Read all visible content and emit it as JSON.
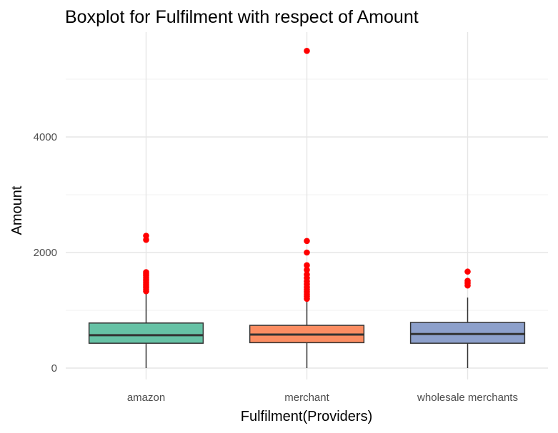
{
  "chart_data": {
    "type": "boxplot",
    "title": "Boxplot for Fulfilment with respect of Amount",
    "xlabel": "Fulfilment(Providers)",
    "ylabel": "Amount",
    "ylim": [
      -170,
      5700
    ],
    "y_ticks": [
      0,
      2000,
      4000
    ],
    "grid": true,
    "legend": "none",
    "categories": [
      "amazon",
      "merchant",
      "wholesale merchants"
    ],
    "boxes": [
      {
        "category": "amazon",
        "color": "#66c2a5",
        "whisker_low": 0,
        "q1": 430,
        "median": 570,
        "q3": 780,
        "whisker_high": 1300,
        "outliers": [
          1330,
          1360,
          1390,
          1420,
          1450,
          1480,
          1510,
          1540,
          1570,
          1600,
          1630,
          1660,
          2220,
          2290
        ]
      },
      {
        "category": "merchant",
        "color": "#fc8d62",
        "whisker_low": 0,
        "q1": 440,
        "median": 580,
        "q3": 740,
        "whisker_high": 1170,
        "outliers": [
          1200,
          1240,
          1280,
          1320,
          1360,
          1400,
          1450,
          1500,
          1560,
          1620,
          1700,
          1780,
          2000,
          2200,
          5490
        ]
      },
      {
        "category": "wholesale merchants",
        "color": "#8da0cb",
        "whisker_low": 0,
        "q1": 430,
        "median": 590,
        "q3": 790,
        "whisker_high": 1220,
        "outliers": [
          1430,
          1470,
          1510,
          1670
        ]
      }
    ],
    "outlier_color": "#ff0000"
  }
}
